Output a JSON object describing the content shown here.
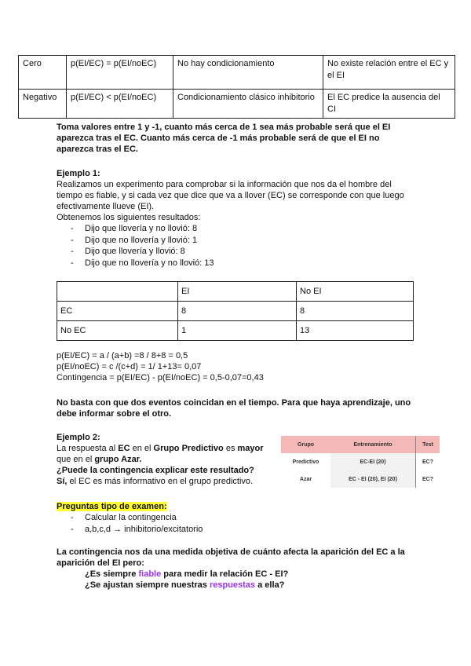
{
  "top_table": {
    "rows": [
      [
        "Cero",
        "p(EI/EC) = p(EI/noEC)",
        "No hay condicionamiento",
        "No existe relación entre el EC y el EI"
      ],
      [
        "Negativo",
        "p(EI/EC) < p(EI/noEC)",
        "Condicionamiento clásico inhibitorio",
        "El EC predice la ausencia del CI"
      ]
    ]
  },
  "para1": "Toma valores entre 1 y -1, cuanto más cerca de 1 sea más probable será que el EI aparezca tras el EC. Cuanto más cerca de -1 más probable será de que el EI no aparezca tras el EC.",
  "ej1": {
    "title": "Ejemplo 1:",
    "text": "Realizamos un experimento para comprobar si la información que nos da el hombre del tiempo es fiable, y si cada vez que dice que va a llover (EC) se corresponde con que luego efectivamente llueve (EI).",
    "intro": "Obtenemos los siguientes resultados:",
    "items": [
      "Dijo que llovería y no llovió: 8",
      "Dijo que no llovería y llovió: 1",
      "Dijo que llovería y llovió: 8",
      "Dijo que no llovería y no llovió: 13"
    ]
  },
  "table2": {
    "rows": [
      [
        "",
        "EI",
        "No EI"
      ],
      [
        "EC",
        "8",
        "8"
      ],
      [
        "No EC",
        "1",
        "13"
      ]
    ]
  },
  "formulas": [
    "p(EI/EC) = a / (a+b) =8 / 8+8 = 0,5",
    "p(EI/noEC) = c /(c+d) = 1/ 1+13= 0,07",
    "Contingencia = p(EI/EC) - p(EI/noEC) = 0,5-0,07=0,43"
  ],
  "para2": "No basta con que dos eventos coincidan en el tiempo. Para que haya aprendizaje, uno debe informar sobre el otro.",
  "ej2": {
    "title": "Ejemplo 2:",
    "l1a": "La respuesta al ",
    "l1b": "EC",
    "l1c": " en el ",
    "l1d": "Grupo Predictivo",
    "l1e": " es ",
    "l1f": "mayor",
    "l2a": "que en el ",
    "l2b": "grupo Azar.",
    "q": "¿Puede la contingencia explicar este resultado?",
    "a1": "Sí,",
    "a2": " el EC es más informativo en el grupo predictivo."
  },
  "table3": {
    "rows": [
      [
        "Grupo",
        "Entrenamiento",
        "Test"
      ],
      [
        "Predictivo",
        "EC-EI (20)",
        "EC?"
      ],
      [
        "Azar",
        "EC - EI (20), EI (20)",
        "EC?"
      ]
    ]
  },
  "preguntas": {
    "title": "Preguntas tipo de examen:",
    "items": [
      "Calcular la contingencia",
      "a,b,c,d → inhibitorio/excitatorio"
    ]
  },
  "final": {
    "text": "La contingencia nos da una medida objetiva de cuánto afecta la aparición del EC a la aparición del EI pero:",
    "q1a": "¿Es siempre ",
    "q1b": "fiable",
    "q1c": " para medir la relación EC - EI?",
    "q2a": "¿Se ajustan siempre nuestras ",
    "q2b": "respuestas",
    "q2c": " a ella?"
  }
}
